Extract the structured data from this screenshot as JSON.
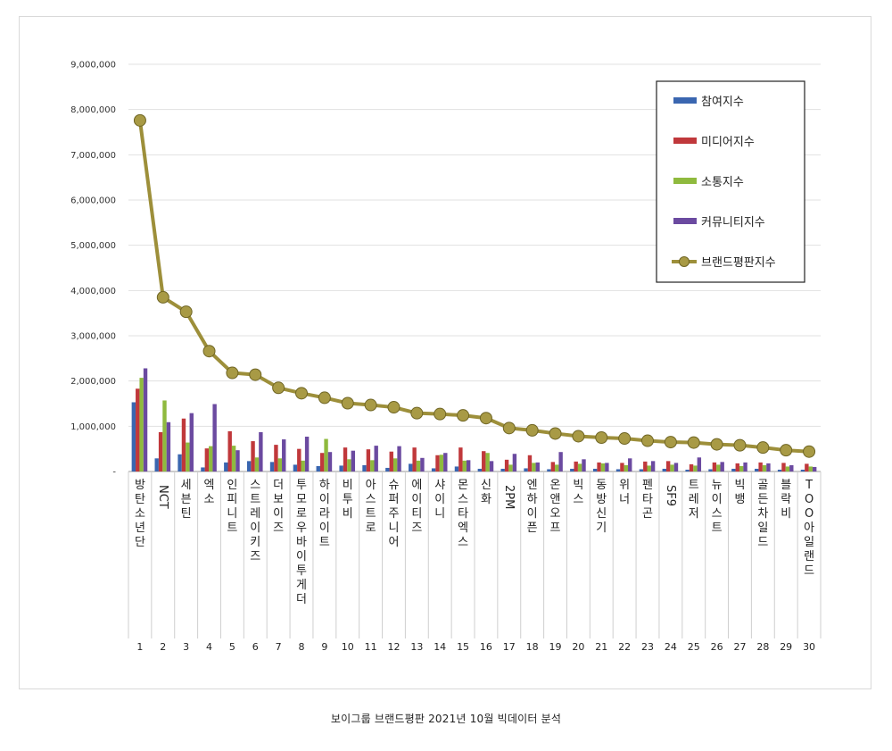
{
  "chart_data": {
    "type": "bar",
    "caption": "보이그룹 브랜드평판  2021년 10월 빅데이터 분석",
    "ylim": [
      0,
      9000000
    ],
    "yticks": [
      "-",
      "1,000,000",
      "2,000,000",
      "3,000,000",
      "4,000,000",
      "5,000,000",
      "6,000,000",
      "7,000,000",
      "8,000,000",
      "9,000,000"
    ],
    "grid": true,
    "legend_position": "top-right",
    "ranks": [
      "1",
      "2",
      "3",
      "4",
      "5",
      "6",
      "7",
      "8",
      "9",
      "10",
      "11",
      "12",
      "13",
      "14",
      "15",
      "16",
      "17",
      "18",
      "19",
      "20",
      "21",
      "22",
      "23",
      "24",
      "25",
      "26",
      "27",
      "28",
      "29",
      "30"
    ],
    "categories": [
      "방탄소년단",
      "NCT",
      "세븐틴",
      "엑소",
      "인피니트",
      "스트레이키즈",
      "더보이즈",
      "투모로우바이투게더",
      "하이라이트",
      "비투비",
      "아스트로",
      "슈퍼주니어",
      "에이티즈",
      "샤이니",
      "몬스타엑스",
      "신화",
      "2PM",
      "엔하이픈",
      "온앤오프",
      "빅스",
      "동방신기",
      "위너",
      "펜타곤",
      "SF9",
      "트레저",
      "뉴이스트",
      "빅뱅",
      "골든차일드",
      "블락비",
      "TOO아일랜드"
    ],
    "series": [
      {
        "name": "참여지수",
        "color": "#3a66b0",
        "values": [
          1530000,
          290000,
          380000,
          90000,
          200000,
          230000,
          210000,
          150000,
          120000,
          130000,
          140000,
          80000,
          170000,
          70000,
          110000,
          60000,
          60000,
          70000,
          50000,
          60000,
          60000,
          50000,
          50000,
          60000,
          40000,
          50000,
          60000,
          60000,
          40000,
          40000
        ]
      },
      {
        "name": "미디어지수",
        "color": "#c0383b",
        "values": [
          1830000,
          870000,
          1170000,
          510000,
          890000,
          670000,
          590000,
          500000,
          410000,
          530000,
          490000,
          440000,
          530000,
          360000,
          530000,
          450000,
          260000,
          360000,
          210000,
          220000,
          200000,
          190000,
          220000,
          230000,
          160000,
          200000,
          180000,
          200000,
          190000,
          170000
        ]
      },
      {
        "name": "소통지수",
        "color": "#8fba3e",
        "values": [
          2070000,
          1570000,
          640000,
          560000,
          570000,
          310000,
          290000,
          240000,
          720000,
          270000,
          250000,
          290000,
          240000,
          370000,
          240000,
          410000,
          150000,
          190000,
          150000,
          170000,
          180000,
          140000,
          130000,
          150000,
          130000,
          150000,
          120000,
          140000,
          110000,
          110000
        ]
      },
      {
        "name": "커뮤니티지수",
        "color": "#6b4aa0",
        "values": [
          2280000,
          1090000,
          1290000,
          1490000,
          470000,
          870000,
          710000,
          770000,
          430000,
          460000,
          570000,
          560000,
          300000,
          410000,
          250000,
          230000,
          390000,
          200000,
          430000,
          270000,
          190000,
          290000,
          230000,
          190000,
          310000,
          210000,
          200000,
          180000,
          140000,
          100000
        ]
      },
      {
        "name": "브랜드평판지수",
        "color": "#9d8f3a",
        "values": [
          7760000,
          3850000,
          3530000,
          2660000,
          2180000,
          2140000,
          1850000,
          1730000,
          1630000,
          1510000,
          1470000,
          1420000,
          1290000,
          1270000,
          1240000,
          1180000,
          960000,
          910000,
          840000,
          780000,
          750000,
          730000,
          680000,
          650000,
          640000,
          600000,
          580000,
          530000,
          470000,
          440000
        ]
      }
    ]
  }
}
